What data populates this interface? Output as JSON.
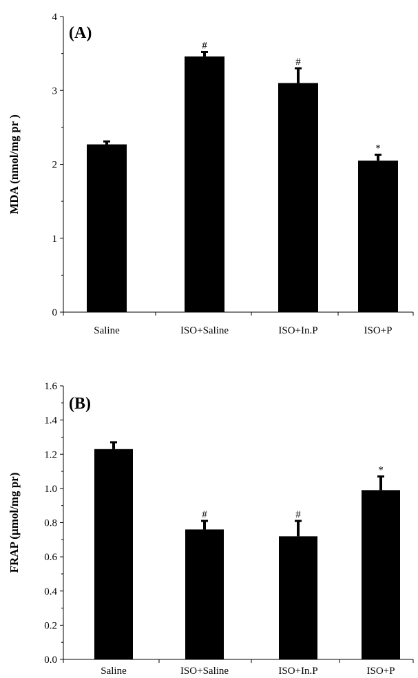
{
  "chart_data": [
    {
      "type": "bar",
      "panel_label": "(A)",
      "title": "",
      "xlabel": "",
      "ylabel": "MDA (nmol/mg pr )",
      "categories": [
        "Saline",
        "ISO+Saline",
        "ISO+In.P",
        "ISO+P"
      ],
      "values": [
        2.27,
        3.46,
        3.1,
        2.05
      ],
      "errors": [
        0.04,
        0.06,
        0.2,
        0.08
      ],
      "annotations": [
        "",
        "#",
        "#",
        "*"
      ],
      "ylim": [
        0,
        4
      ],
      "yticks": [
        "0",
        "1",
        "2",
        "3",
        "4"
      ],
      "bar_color": "#000000",
      "grid": false
    },
    {
      "type": "bar",
      "panel_label": "(B)",
      "title": "",
      "xlabel": "",
      "ylabel": "FRAP  (µmol/mg pr)",
      "categories": [
        "Saline",
        "ISO+Saline",
        "ISO+In.P",
        "ISO+P"
      ],
      "values": [
        1.23,
        0.76,
        0.72,
        0.99
      ],
      "errors": [
        0.04,
        0.05,
        0.09,
        0.08
      ],
      "annotations": [
        "",
        "#",
        "#",
        "*"
      ],
      "ylim": [
        0,
        1.6
      ],
      "yticks": [
        "0.0",
        "0.2",
        "0.4",
        "0.6",
        "0.8",
        "1.0",
        "1.2",
        "1.4",
        "1.6"
      ],
      "bar_color": "#000000",
      "grid": false
    }
  ]
}
